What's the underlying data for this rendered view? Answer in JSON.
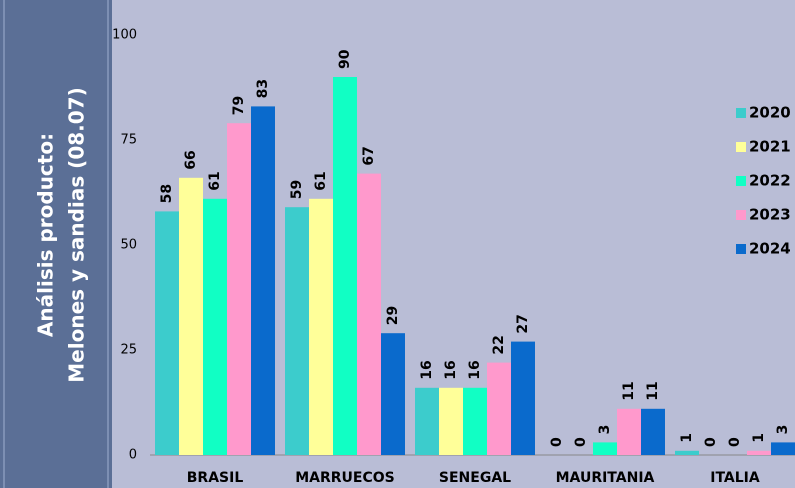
{
  "sidebar": {
    "lines": [
      "Análisis producto:",
      "Melones y sandias (08.07)"
    ]
  },
  "chart_data": {
    "type": "bar",
    "categories": [
      "BRASIL",
      "MARRUECOS",
      "SENEGAL",
      "MAURITANIA",
      "ITALIA"
    ],
    "series": [
      {
        "name": "2020",
        "color": "#3ccccc",
        "values": [
          58,
          59,
          16,
          0,
          1
        ]
      },
      {
        "name": "2021",
        "color": "#ffff99",
        "values": [
          66,
          61,
          16,
          0,
          0
        ]
      },
      {
        "name": "2022",
        "color": "#11ffc4",
        "values": [
          61,
          90,
          16,
          3,
          0
        ]
      },
      {
        "name": "2023",
        "color": "#ff99cc",
        "values": [
          79,
          67,
          22,
          11,
          1
        ]
      },
      {
        "name": "2024",
        "color": "#0a6acc",
        "values": [
          83,
          29,
          27,
          11,
          3
        ]
      }
    ],
    "ylim": [
      0,
      100
    ],
    "yticks": [
      0,
      25,
      50,
      75,
      100
    ],
    "legend": "right"
  }
}
